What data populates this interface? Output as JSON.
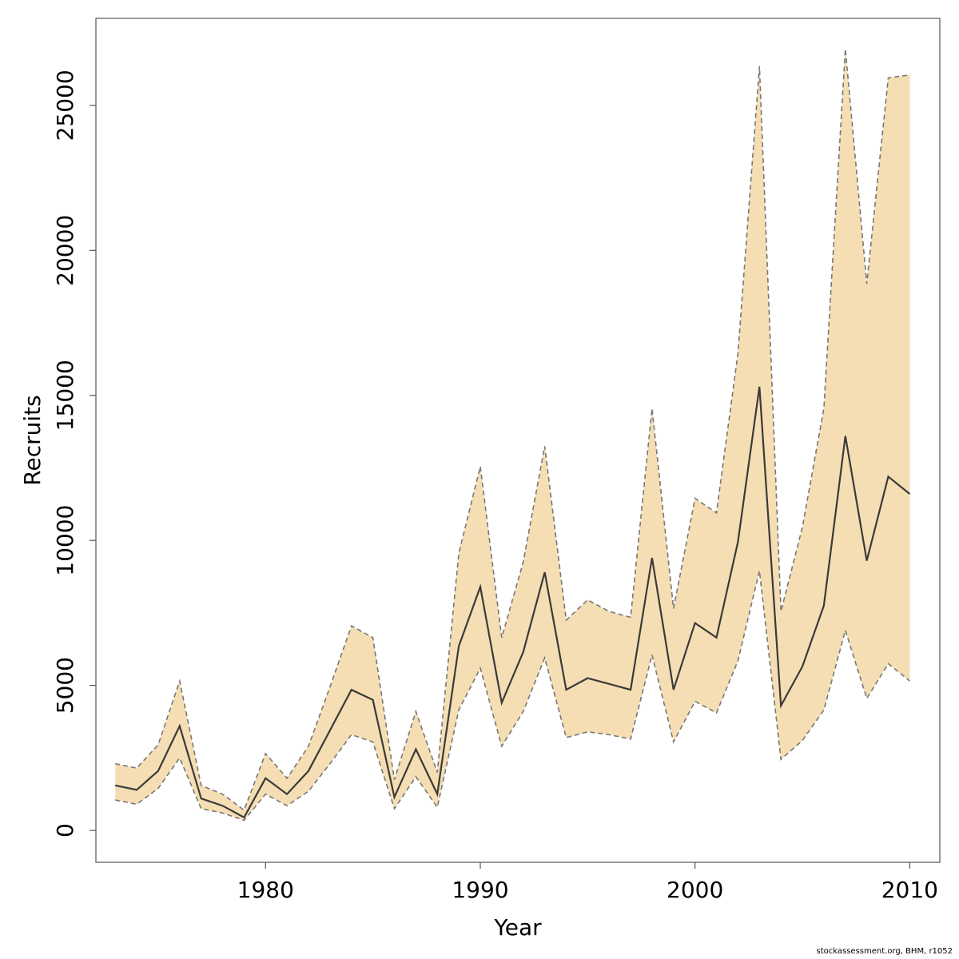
{
  "chart_data": {
    "type": "area",
    "title": "",
    "xlabel": "Year",
    "ylabel": "Recruits",
    "xlim": [
      1972.1,
      2011.4
    ],
    "ylim": [
      -1100,
      28000
    ],
    "x_ticks": [
      1980,
      1990,
      2000,
      2010
    ],
    "y_ticks": [
      0,
      5000,
      10000,
      15000,
      20000,
      25000
    ],
    "grid": false,
    "legend": "none",
    "colors": {
      "band": "#f5deb3",
      "bounds": "#777777",
      "median": "#3a3a3a",
      "frame": "#555555"
    },
    "x": [
      1973,
      1974,
      1975,
      1976,
      1977,
      1978,
      1979,
      1980,
      1981,
      1982,
      1983,
      1984,
      1985,
      1986,
      1987,
      1988,
      1989,
      1990,
      1991,
      1992,
      1993,
      1994,
      1995,
      1996,
      1997,
      1998,
      1999,
      2000,
      2001,
      2002,
      2003,
      2004,
      2005,
      2006,
      2007,
      2008,
      2009,
      2010
    ],
    "series": [
      {
        "name": "upper",
        "style": "dashed",
        "values": [
          2300,
          2150,
          2950,
          5150,
          1550,
          1250,
          700,
          2650,
          1800,
          2900,
          4950,
          7050,
          6650,
          1750,
          4100,
          2000,
          9550,
          12550,
          6650,
          9250,
          13250,
          7250,
          7950,
          7550,
          7350,
          14550,
          7650,
          11450,
          10950,
          16450,
          26350,
          7550,
          10450,
          14550,
          26950,
          18850,
          25950,
          26050
        ]
      },
      {
        "name": "median",
        "style": "solid",
        "values": [
          1550,
          1400,
          2050,
          3600,
          1100,
          850,
          450,
          1800,
          1250,
          2050,
          3450,
          4850,
          4500,
          1150,
          2800,
          1250,
          6350,
          8400,
          4400,
          6150,
          8900,
          4850,
          5250,
          5050,
          4850,
          9400,
          4850,
          7150,
          6650,
          9950,
          15300,
          4300,
          5650,
          7750,
          13600,
          9300,
          12200,
          11600
        ]
      },
      {
        "name": "lower",
        "style": "dashed",
        "values": [
          1050,
          900,
          1450,
          2500,
          750,
          600,
          350,
          1250,
          850,
          1350,
          2300,
          3300,
          3050,
          750,
          1850,
          800,
          4150,
          5600,
          2900,
          4100,
          5950,
          3200,
          3400,
          3300,
          3150,
          6050,
          3050,
          4450,
          4050,
          5850,
          8950,
          2450,
          3100,
          4150,
          6900,
          4550,
          5750,
          5150
        ]
      }
    ]
  },
  "footer": {
    "credit": "stockassessment.org, BHM, r1052"
  }
}
